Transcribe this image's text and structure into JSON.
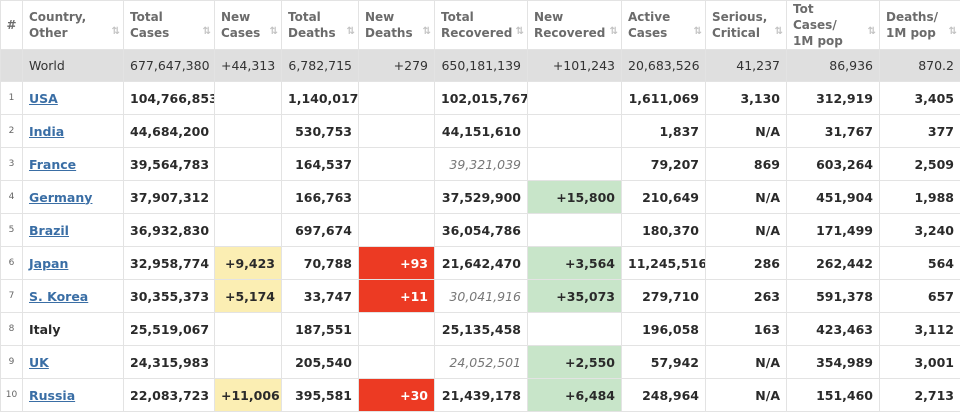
{
  "headers": [
    {
      "label": "#"
    },
    {
      "label": "Country, Other"
    },
    {
      "label": "Total Cases"
    },
    {
      "label": "New Cases"
    },
    {
      "label": "Total Deaths"
    },
    {
      "label": "New Deaths"
    },
    {
      "label": "Total Recovered"
    },
    {
      "label": "New Recovered"
    },
    {
      "label": "Active Cases"
    },
    {
      "label": "Serious, Critical"
    },
    {
      "label": "Tot Cases/ 1M pop"
    },
    {
      "label": "Deaths/ 1M pop"
    }
  ],
  "sort_icon": "⇅",
  "world": {
    "country": "World",
    "total_cases": "677,647,380",
    "new_cases": "+44,313",
    "total_deaths": "6,782,715",
    "new_deaths": "+279",
    "total_recovered": "650,181,139",
    "new_recovered": "+101,243",
    "active_cases": "20,683,526",
    "serious_critical": "41,237",
    "cases_per_1m": "86,936",
    "deaths_per_1m": "870.2"
  },
  "rows": [
    {
      "idx": "1",
      "country": "USA",
      "total_cases": "104,766,853",
      "new_cases": "",
      "total_deaths": "1,140,017",
      "new_deaths": "",
      "total_recovered": "102,015,767",
      "new_recovered": "",
      "active_cases": "1,611,069",
      "serious_critical": "3,130",
      "cases_per_1m": "312,919",
      "deaths_per_1m": "3,405"
    },
    {
      "idx": "2",
      "country": "India",
      "total_cases": "44,684,200",
      "new_cases": "",
      "total_deaths": "530,753",
      "new_deaths": "",
      "total_recovered": "44,151,610",
      "new_recovered": "",
      "active_cases": "1,837",
      "serious_critical": "N/A",
      "cases_per_1m": "31,767",
      "deaths_per_1m": "377"
    },
    {
      "idx": "3",
      "country": "France",
      "total_cases": "39,564,783",
      "new_cases": "",
      "total_deaths": "164,537",
      "new_deaths": "",
      "total_recovered": "39,321,039",
      "new_recovered": "",
      "active_cases": "79,207",
      "serious_critical": "869",
      "cases_per_1m": "603,264",
      "deaths_per_1m": "2,509"
    },
    {
      "idx": "4",
      "country": "Germany",
      "total_cases": "37,907,312",
      "new_cases": "",
      "total_deaths": "166,763",
      "new_deaths": "",
      "total_recovered": "37,529,900",
      "new_recovered": "+15,800",
      "active_cases": "210,649",
      "serious_critical": "N/A",
      "cases_per_1m": "451,904",
      "deaths_per_1m": "1,988"
    },
    {
      "idx": "5",
      "country": "Brazil",
      "total_cases": "36,932,830",
      "new_cases": "",
      "total_deaths": "697,674",
      "new_deaths": "",
      "total_recovered": "36,054,786",
      "new_recovered": "",
      "active_cases": "180,370",
      "serious_critical": "N/A",
      "cases_per_1m": "171,499",
      "deaths_per_1m": "3,240"
    },
    {
      "idx": "6",
      "country": "Japan",
      "total_cases": "32,958,774",
      "new_cases": "+9,423",
      "total_deaths": "70,788",
      "new_deaths": "+93",
      "total_recovered": "21,642,470",
      "new_recovered": "+3,564",
      "active_cases": "11,245,516",
      "serious_critical": "286",
      "cases_per_1m": "262,442",
      "deaths_per_1m": "564"
    },
    {
      "idx": "7",
      "country": "S. Korea",
      "total_cases": "30,355,373",
      "new_cases": "+5,174",
      "total_deaths": "33,747",
      "new_deaths": "+11",
      "total_recovered": "30,041,916",
      "new_recovered": "+35,073",
      "active_cases": "279,710",
      "serious_critical": "263",
      "cases_per_1m": "591,378",
      "deaths_per_1m": "657"
    },
    {
      "idx": "8",
      "country": "Italy",
      "total_cases": "25,519,067",
      "new_cases": "",
      "total_deaths": "187,551",
      "new_deaths": "",
      "total_recovered": "25,135,458",
      "new_recovered": "",
      "active_cases": "196,058",
      "serious_critical": "163",
      "cases_per_1m": "423,463",
      "deaths_per_1m": "3,112"
    },
    {
      "idx": "9",
      "country": "UK",
      "total_cases": "24,315,983",
      "new_cases": "",
      "total_deaths": "205,540",
      "new_deaths": "",
      "total_recovered": "24,052,501",
      "new_recovered": "+2,550",
      "active_cases": "57,942",
      "serious_critical": "N/A",
      "cases_per_1m": "354,989",
      "deaths_per_1m": "3,001"
    },
    {
      "idx": "10",
      "country": "Russia",
      "total_cases": "22,083,723",
      "new_cases": "+11,006",
      "total_deaths": "395,581",
      "new_deaths": "+30",
      "total_recovered": "21,439,178",
      "new_recovered": "+6,484",
      "active_cases": "248,964",
      "serious_critical": "N/A",
      "cases_per_1m": "151,460",
      "deaths_per_1m": "2,713"
    }
  ],
  "colors": {
    "new_cases_bg": "#fbeeb3",
    "new_deaths_bg": "#ec3a23",
    "new_recovered_bg": "#c8e5c9",
    "world_row_bg": "#dfdfdf",
    "link_color": "#3a6ea5"
  }
}
